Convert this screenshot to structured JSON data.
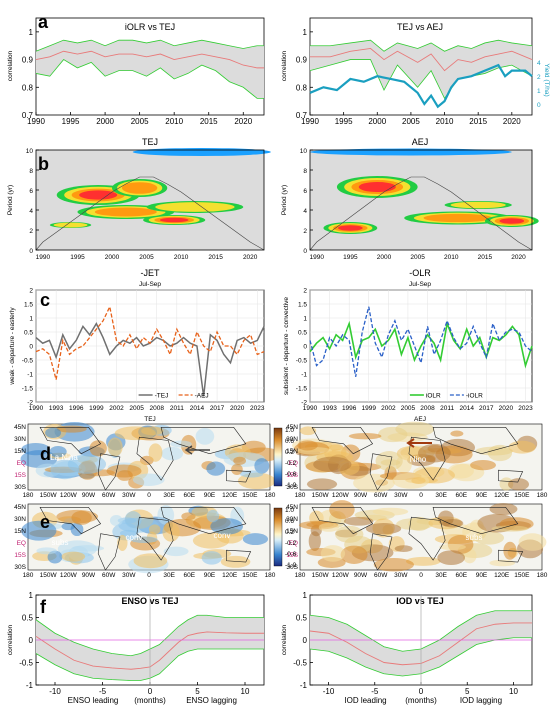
{
  "colors": {
    "band": "#dcdcdc",
    "green": "#33cc33",
    "red": "#e87a7a",
    "yield": "#1a9fc0",
    "gray": "#707070",
    "orange": "#e8621a",
    "blue": "#2a60c8",
    "magenta": "#e060e0"
  },
  "chart_data": [
    {
      "panel": "a",
      "type": "area",
      "title": "iOLR vs TEJ",
      "ylabel": "correlation",
      "xlim": [
        1990,
        2023
      ],
      "ylim": [
        0.7,
        1.05
      ],
      "xticks": [
        "1990",
        "1995",
        "2000",
        "2005",
        "2010",
        "2015",
        "2020"
      ],
      "yticks": [
        "0.7",
        "0.8",
        "0.9",
        "1"
      ],
      "series": [
        {
          "role": "upper",
          "x": [
            1990,
            1992,
            1994,
            1996,
            1998,
            2000,
            2002,
            2004,
            2006,
            2008,
            2010,
            2012,
            2014,
            2016,
            2018,
            2020,
            2022,
            2023
          ],
          "values": [
            0.93,
            0.95,
            0.97,
            0.96,
            0.97,
            0.95,
            0.97,
            0.97,
            0.96,
            0.97,
            0.95,
            0.96,
            0.97,
            0.96,
            0.95,
            0.94,
            0.95,
            0.95
          ]
        },
        {
          "role": "mean",
          "x": [
            1990,
            1992,
            1994,
            1996,
            1998,
            2000,
            2002,
            2004,
            2006,
            2008,
            2010,
            2012,
            2014,
            2016,
            2018,
            2020,
            2022,
            2023
          ],
          "values": [
            0.9,
            0.91,
            0.93,
            0.92,
            0.93,
            0.91,
            0.92,
            0.92,
            0.91,
            0.92,
            0.9,
            0.91,
            0.92,
            0.91,
            0.9,
            0.88,
            0.87,
            0.87
          ]
        },
        {
          "role": "lower",
          "x": [
            1990,
            1992,
            1994,
            1996,
            1998,
            2000,
            2002,
            2004,
            2006,
            2008,
            2010,
            2012,
            2014,
            2016,
            2018,
            2020,
            2022,
            2023
          ],
          "values": [
            0.85,
            0.84,
            0.9,
            0.87,
            0.89,
            0.84,
            0.86,
            0.86,
            0.84,
            0.87,
            0.83,
            0.85,
            0.88,
            0.86,
            0.82,
            0.8,
            0.76,
            0.76
          ]
        }
      ]
    },
    {
      "panel": "a",
      "type": "area",
      "title": "TEJ vs AEJ",
      "ylabel": "correlation",
      "ylabel2": "Yield (T/ha)",
      "xlim": [
        1990,
        2023
      ],
      "ylim": [
        0.7,
        1.05
      ],
      "xticks": [
        "1990",
        "1995",
        "2000",
        "2005",
        "2010",
        "2015",
        "2020"
      ],
      "yticks": [
        "0.7",
        "0.8",
        "0.9",
        "1"
      ],
      "y2ticks": [
        "0",
        "1",
        "2",
        "4"
      ],
      "series": [
        {
          "role": "upper",
          "x": [
            1990,
            1993,
            1996,
            1999,
            2001,
            2003,
            2006,
            2008,
            2010,
            2012,
            2014,
            2016,
            2018,
            2020,
            2023
          ],
          "values": [
            0.95,
            0.95,
            0.96,
            0.97,
            0.93,
            0.96,
            0.94,
            0.96,
            0.93,
            0.95,
            0.94,
            0.96,
            0.97,
            0.96,
            0.95
          ]
        },
        {
          "role": "mean",
          "x": [
            1990,
            1993,
            1996,
            1999,
            2001,
            2003,
            2006,
            2008,
            2010,
            2012,
            2014,
            2016,
            2018,
            2020,
            2023
          ],
          "values": [
            0.91,
            0.91,
            0.93,
            0.94,
            0.9,
            0.93,
            0.89,
            0.92,
            0.86,
            0.9,
            0.89,
            0.91,
            0.92,
            0.93,
            0.9
          ]
        },
        {
          "role": "lower",
          "x": [
            1990,
            1993,
            1996,
            1999,
            2001,
            2003,
            2006,
            2008,
            2010,
            2012,
            2014,
            2016,
            2018,
            2020,
            2023
          ],
          "values": [
            0.86,
            0.88,
            0.9,
            0.9,
            0.79,
            0.88,
            0.8,
            0.86,
            0.76,
            0.83,
            0.84,
            0.85,
            0.87,
            0.88,
            0.84
          ]
        },
        {
          "role": "yield",
          "x": [
            1990,
            1992,
            1994,
            1996,
            1998,
            2000,
            2002,
            2004,
            2006,
            2007,
            2008,
            2009,
            2010,
            2011,
            2012,
            2014,
            2016,
            2018,
            2019,
            2020,
            2022,
            2023
          ],
          "values": [
            0.78,
            0.8,
            0.79,
            0.83,
            0.82,
            0.84,
            0.83,
            0.82,
            0.78,
            0.74,
            0.77,
            0.73,
            0.75,
            0.8,
            0.83,
            0.84,
            0.86,
            0.88,
            0.84,
            0.86,
            0.86,
            0.84
          ]
        }
      ]
    },
    {
      "panel": "b",
      "type": "heatmap",
      "title": "TEJ",
      "ylabel": "Period (yr)",
      "xticks": [
        "1990",
        "1995",
        "2000",
        "2005",
        "2010",
        "2015",
        "2020"
      ],
      "yticks": [
        "0",
        "2",
        "4",
        "6",
        "8",
        "10"
      ],
      "blobs": [
        {
          "yr": 1998,
          "per": 5.5,
          "w": 12,
          "h": 2.0,
          "level": 3
        },
        {
          "yr": 2004,
          "per": 6.2,
          "w": 8,
          "h": 1.8,
          "level": 2
        },
        {
          "yr": 2002,
          "per": 3.8,
          "w": 14,
          "h": 1.4,
          "level": 2
        },
        {
          "yr": 2009,
          "per": 3.0,
          "w": 9,
          "h": 1.0,
          "level": 4
        },
        {
          "yr": 2012,
          "per": 4.3,
          "w": 14,
          "h": 1.2,
          "level": 1
        },
        {
          "yr": 1994,
          "per": 2.5,
          "w": 6,
          "h": 0.6,
          "level": 1
        },
        {
          "yr": 2013,
          "per": 9.8,
          "w": 20,
          "h": 0.8,
          "level": 0
        }
      ]
    },
    {
      "panel": "b",
      "type": "heatmap",
      "title": "AEJ",
      "ylabel": "Period (yr)",
      "xticks": [
        "1990",
        "1995",
        "2000",
        "2005",
        "2010",
        "2015",
        "2020"
      ],
      "yticks": [
        "0",
        "2",
        "4",
        "6",
        "8",
        "10"
      ],
      "blobs": [
        {
          "yr": 1999,
          "per": 6.3,
          "w": 12,
          "h": 2.2,
          "level": 3
        },
        {
          "yr": 1995,
          "per": 2.2,
          "w": 8,
          "h": 1.2,
          "level": 4
        },
        {
          "yr": 2011,
          "per": 3.2,
          "w": 16,
          "h": 1.3,
          "level": 2
        },
        {
          "yr": 2019,
          "per": 2.9,
          "w": 8,
          "h": 1.2,
          "level": 4
        },
        {
          "yr": 2014,
          "per": 4.5,
          "w": 10,
          "h": 0.8,
          "level": 1
        },
        {
          "yr": 2004,
          "per": 9.8,
          "w": 30,
          "h": 0.7,
          "level": 0
        }
      ]
    },
    {
      "panel": "c",
      "type": "line",
      "title": "-JET",
      "subtitle": "Jul-Sep",
      "ylabel": "weak - departure - easterly",
      "xlim": [
        1990,
        2024
      ],
      "ylim": [
        -2,
        2
      ],
      "xticks": [
        "1990",
        "1993",
        "1996",
        "1999",
        "2002",
        "2005",
        "2008",
        "2011",
        "2014",
        "2017",
        "2020",
        "2023"
      ],
      "yticks": [
        "-2",
        "-1.5",
        "-1",
        "-0.5",
        "0",
        "0.5",
        "1",
        "1.5",
        "2"
      ],
      "x": [
        1990,
        1991,
        1992,
        1993,
        1994,
        1995,
        1996,
        1997,
        1998,
        1999,
        2000,
        2001,
        2002,
        2003,
        2004,
        2005,
        2006,
        2007,
        2008,
        2009,
        2010,
        2011,
        2012,
        2013,
        2014,
        2015,
        2016,
        2017,
        2018,
        2019,
        2020,
        2021,
        2022,
        2023,
        2024
      ],
      "series": [
        {
          "name": "-TEJ",
          "values": [
            0.3,
            0.1,
            0.2,
            -0.4,
            0.4,
            -0.1,
            0.2,
            0.7,
            0.4,
            0.8,
            0.3,
            -0.3,
            0.0,
            0.2,
            0.1,
            0.3,
            0.0,
            0.1,
            0.3,
            0.2,
            0.0,
            0.1,
            0.3,
            0.1,
            0.0,
            -1.8,
            0.4,
            0.2,
            -0.3,
            -0.6,
            0.2,
            0.3,
            0.1,
            0.2,
            0.7
          ]
        },
        {
          "name": "-AEJ",
          "values": [
            -0.2,
            -0.1,
            -0.3,
            -1.2,
            0.2,
            -0.3,
            -0.1,
            0.0,
            0.3,
            0.6,
            0.9,
            1.4,
            0.2,
            0.0,
            0.4,
            -0.1,
            0.3,
            0.1,
            0.6,
            0.2,
            -0.3,
            0.6,
            0.1,
            -0.3,
            0.5,
            0.0,
            -0.2,
            0.5,
            0.0,
            0.0,
            -0.3,
            0.2,
            0.4,
            -0.3,
            -0.2
          ]
        }
      ]
    },
    {
      "panel": "c",
      "type": "line",
      "title": "-OLR",
      "subtitle": "Jul-Sep",
      "ylabel": "subsident - departure - convective",
      "xlim": [
        1990,
        2024
      ],
      "ylim": [
        -2,
        2
      ],
      "xticks": [
        "1990",
        "1993",
        "1996",
        "1999",
        "2002",
        "2005",
        "2008",
        "2011",
        "2014",
        "2017",
        "2020",
        "2023"
      ],
      "yticks": [
        "-2",
        "-1.5",
        "-1",
        "-0.5",
        "0",
        "0.5",
        "1",
        "1.5",
        "2"
      ],
      "x": [
        1990,
        1991,
        1992,
        1993,
        1994,
        1995,
        1996,
        1997,
        1998,
        1999,
        2000,
        2001,
        2002,
        2003,
        2004,
        2005,
        2006,
        2007,
        2008,
        2009,
        2010,
        2011,
        2012,
        2013,
        2014,
        2015,
        2016,
        2017,
        2018,
        2019,
        2020,
        2021,
        2022,
        2023,
        2024
      ],
      "series": [
        {
          "name": "iOLR",
          "values": [
            -0.2,
            0.1,
            0.3,
            -0.1,
            0.4,
            0.2,
            0.8,
            -0.4,
            0.2,
            0.3,
            0.6,
            0.0,
            0.2,
            0.6,
            -0.3,
            0.3,
            -0.5,
            0.0,
            0.4,
            0.1,
            -0.5,
            0.8,
            0.2,
            -0.1,
            0.6,
            0.0,
            0.3,
            -0.4,
            0.3,
            0.2,
            0.4,
            0.7,
            0.4,
            -0.7,
            0.0
          ]
        },
        {
          "name": "-iOLR",
          "values": [
            0.2,
            -0.7,
            -0.5,
            0.3,
            0.0,
            0.4,
            0.2,
            -1.1,
            0.5,
            1.4,
            0.1,
            -0.4,
            0.4,
            0.9,
            0.2,
            0.6,
            0.0,
            -0.6,
            0.7,
            -0.3,
            0.2,
            0.9,
            0.3,
            -0.1,
            0.1,
            0.7,
            0.1,
            -0.4,
            0.8,
            0.2,
            0.5,
            0.6,
            0.5,
            0.0,
            -0.2
          ]
        }
      ]
    },
    {
      "panel": "f",
      "type": "area",
      "title": "ENSO vs TEJ",
      "ylabel": "correlation",
      "xlim": [
        -12,
        12
      ],
      "ylim": [
        -1,
        1
      ],
      "xticks": [
        "-10",
        "-5",
        "0",
        "5",
        "10"
      ],
      "yticks": [
        "-1",
        "-0.5",
        "0",
        "0.5",
        "1"
      ],
      "xannot": [
        "ENSO leading",
        "(months)",
        "ENSO lagging"
      ],
      "series": [
        {
          "role": "upper",
          "x": [
            -12,
            -10,
            -8,
            -6,
            -4,
            -2,
            -1,
            0,
            1,
            2,
            3,
            4,
            5,
            6,
            8,
            10,
            12
          ],
          "values": [
            0.45,
            0.15,
            -0.05,
            -0.2,
            -0.3,
            -0.35,
            -0.3,
            -0.2,
            -0.1,
            0.1,
            0.3,
            0.45,
            0.55,
            0.55,
            0.5,
            0.5,
            0.5
          ]
        },
        {
          "role": "mean",
          "x": [
            -12,
            -10,
            -8,
            -6,
            -4,
            -2,
            -1,
            0,
            1,
            2,
            3,
            4,
            5,
            6,
            8,
            10,
            12
          ],
          "values": [
            0.08,
            -0.2,
            -0.45,
            -0.58,
            -0.62,
            -0.65,
            -0.63,
            -0.6,
            -0.45,
            -0.25,
            -0.05,
            0.1,
            0.15,
            0.18,
            0.16,
            0.15,
            0.15
          ]
        },
        {
          "role": "lower",
          "x": [
            -12,
            -10,
            -8,
            -6,
            -4,
            -2,
            -1,
            0,
            1,
            2,
            3,
            4,
            5,
            6,
            8,
            10,
            12
          ],
          "values": [
            -0.3,
            -0.55,
            -0.75,
            -0.85,
            -0.88,
            -0.9,
            -0.9,
            -0.85,
            -0.75,
            -0.55,
            -0.35,
            -0.25,
            -0.2,
            -0.2,
            -0.2,
            -0.2,
            -0.2
          ]
        }
      ]
    },
    {
      "panel": "f",
      "type": "area",
      "title": "IOD vs TEJ",
      "ylabel": "correlation",
      "xlim": [
        -12,
        12
      ],
      "ylim": [
        -1,
        1
      ],
      "xticks": [
        "-10",
        "-5",
        "0",
        "5",
        "10"
      ],
      "yticks": [
        "-1",
        "-0.5",
        "0",
        "0.5",
        "1"
      ],
      "xannot": [
        "IOD leading",
        "(months)",
        "IOD lagging"
      ],
      "series": [
        {
          "role": "upper",
          "x": [
            -12,
            -10,
            -8,
            -6,
            -4,
            -2,
            0,
            2,
            4,
            6,
            8,
            10,
            12
          ],
          "values": [
            0.55,
            0.5,
            0.35,
            0.1,
            -0.15,
            -0.25,
            -0.2,
            0.0,
            0.3,
            0.55,
            0.65,
            0.65,
            0.65
          ]
        },
        {
          "role": "mean",
          "x": [
            -12,
            -10,
            -8,
            -6,
            -4,
            -2,
            0,
            2,
            4,
            6,
            8,
            10,
            12
          ],
          "values": [
            0.2,
            0.15,
            -0.05,
            -0.3,
            -0.5,
            -0.55,
            -0.52,
            -0.35,
            -0.05,
            0.25,
            0.35,
            0.38,
            0.38
          ]
        },
        {
          "role": "lower",
          "x": [
            -12,
            -10,
            -8,
            -6,
            -4,
            -2,
            0,
            2,
            4,
            6,
            8,
            10,
            12
          ],
          "values": [
            -0.2,
            -0.25,
            -0.4,
            -0.6,
            -0.75,
            -0.8,
            -0.75,
            -0.6,
            -0.35,
            -0.1,
            0.0,
            0.05,
            0.05
          ]
        }
      ]
    }
  ],
  "maps": {
    "d_left": {
      "title": "TEJ",
      "annot": [
        "La Nina"
      ]
    },
    "d_right": {
      "title": "AEJ",
      "annot": [
        "Nino"
      ]
    },
    "e_left": {
      "annot": [
        "subs",
        "conv",
        "conv"
      ]
    },
    "e_right": {
      "annot": [
        "subs"
      ]
    },
    "lat_labels": [
      "45N",
      "30N",
      "15N",
      "EQ",
      "15S",
      "30S"
    ],
    "lon_labels": [
      "180",
      "150W",
      "120W",
      "90W",
      "60W",
      "30W",
      "0",
      "30E",
      "60E",
      "90E",
      "120E",
      "150E",
      "180"
    ],
    "colorbar": [
      "1.0",
      "0.6",
      "0.2",
      "-0.2",
      "-0.6",
      "-1.0"
    ]
  },
  "panel_letters": [
    "a",
    "b",
    "c",
    "d",
    "e",
    "f"
  ]
}
